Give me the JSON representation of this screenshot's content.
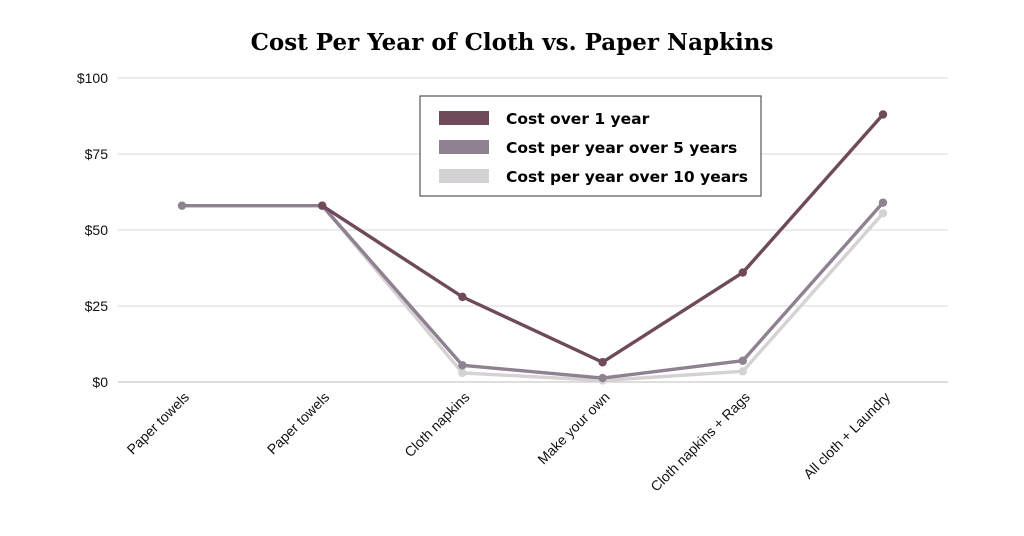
{
  "chart_data": {
    "type": "line",
    "title": "Cost Per Year of Cloth vs. Paper Napkins",
    "xlabel": "",
    "ylabel": "",
    "categories": [
      "Paper towels",
      "Paper towels",
      "Cloth napkins",
      "Make your own",
      "Cloth napkins + Rags",
      "All cloth + Laundry"
    ],
    "ylim": [
      0,
      100
    ],
    "yticks": [
      0,
      25,
      50,
      75,
      100
    ],
    "ytick_labels": [
      "$0",
      "$25",
      "$50",
      "$75",
      "$100"
    ],
    "grid": true,
    "legend_position": "top-center",
    "series": [
      {
        "name": "Cost per year over 10 years",
        "color": "#d6d1d4",
        "values": [
          58,
          58,
          3,
          0.5,
          3.5,
          55.5
        ]
      },
      {
        "name": "Cost per year over 5 years",
        "color": "#8e8190",
        "values": [
          58,
          58,
          5.5,
          1.3,
          7,
          59
        ]
      },
      {
        "name": "Cost over 1 year",
        "color": "#6e4a5a",
        "values": [
          null,
          58,
          28,
          6.5,
          36,
          88
        ]
      }
    ],
    "legend_order": [
      2,
      1,
      0
    ]
  }
}
